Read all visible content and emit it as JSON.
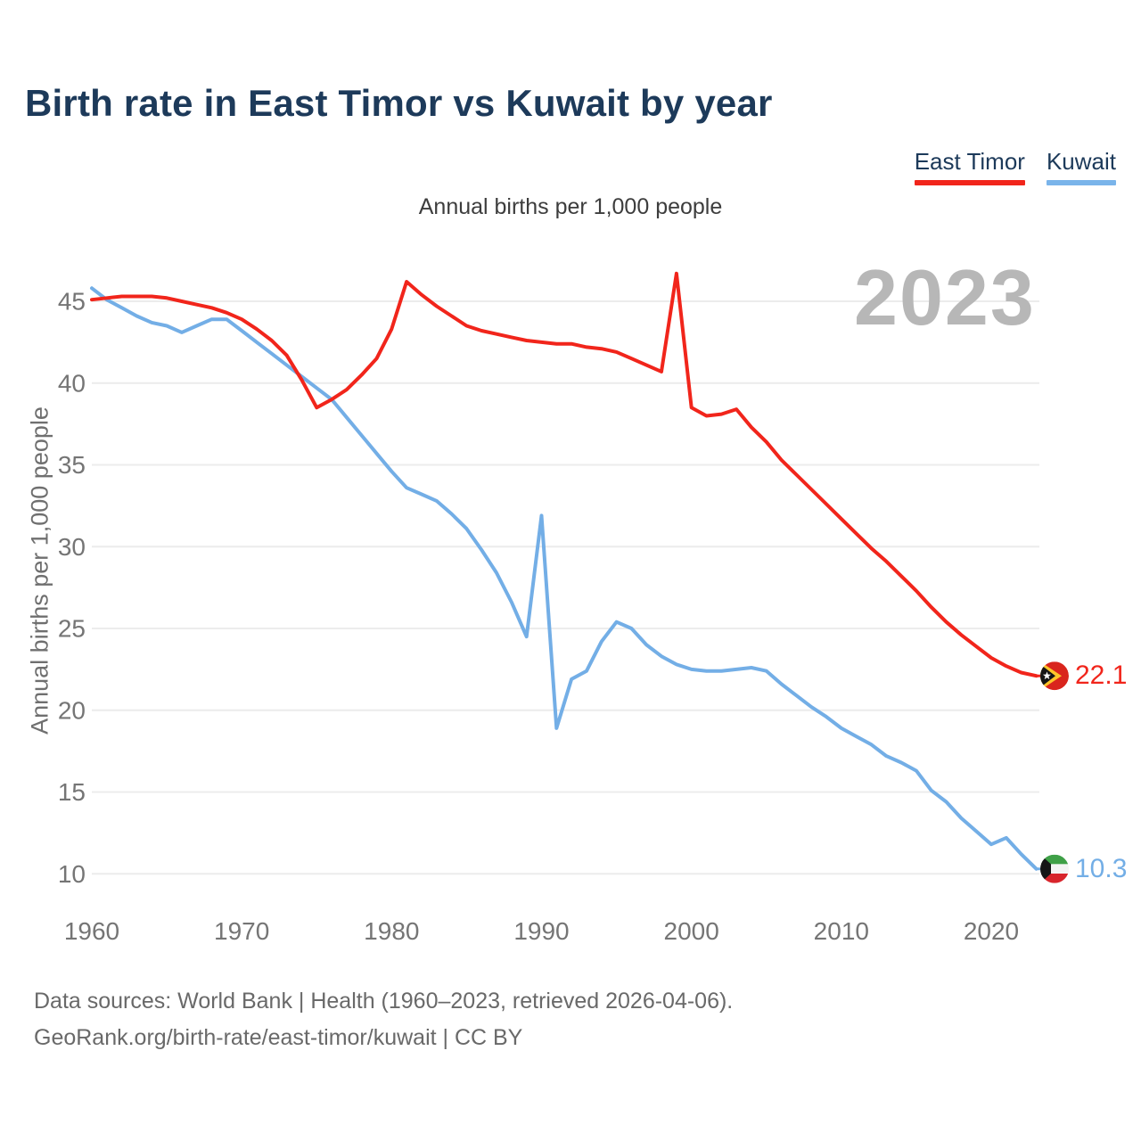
{
  "page": {
    "title": "Birth rate in East Timor vs Kuwait by year"
  },
  "legend": {
    "items": [
      {
        "label": "East Timor",
        "color": "#f1251b"
      },
      {
        "label": "Kuwait",
        "color": "#7ab4ea"
      }
    ]
  },
  "subtitle": "Annual births per 1,000 people",
  "watermark": "2023",
  "end_labels": {
    "east_timor": "22.1",
    "kuwait": "10.3"
  },
  "footer": {
    "line1": "Data sources: World Bank | Health (1960–2023, retrieved 2026-04-06).",
    "line2": "GeoRank.org/birth-rate/east-timor/kuwait | CC BY"
  },
  "chart_data": {
    "type": "line",
    "title": "Birth rate in East Timor vs Kuwait by year",
    "ylabel": "Annual births per 1,000 people",
    "grid": true,
    "legend_position": "top-right",
    "x_ticks": [
      1960,
      1970,
      1980,
      1990,
      2000,
      2010,
      2020
    ],
    "y_ticks": [
      45,
      40,
      35,
      30,
      25,
      20,
      15,
      10
    ],
    "xlim": [
      1960,
      2023
    ],
    "ylim": [
      8.8,
      47.5
    ],
    "x": [
      1960,
      1961,
      1962,
      1963,
      1964,
      1965,
      1966,
      1967,
      1968,
      1969,
      1970,
      1971,
      1972,
      1973,
      1974,
      1975,
      1976,
      1977,
      1978,
      1979,
      1980,
      1981,
      1982,
      1983,
      1984,
      1985,
      1986,
      1987,
      1988,
      1989,
      1990,
      1991,
      1992,
      1993,
      1994,
      1995,
      1996,
      1997,
      1998,
      1999,
      2000,
      2001,
      2002,
      2003,
      2004,
      2005,
      2006,
      2007,
      2008,
      2009,
      2010,
      2011,
      2012,
      2013,
      2014,
      2015,
      2016,
      2017,
      2018,
      2019,
      2020,
      2021,
      2022,
      2023
    ],
    "series": [
      {
        "name": "East Timor",
        "color": "#f1251b",
        "values": [
          45.1,
          45.2,
          45.3,
          45.3,
          45.3,
          45.2,
          45.0,
          44.8,
          44.6,
          44.3,
          43.9,
          43.3,
          42.6,
          41.7,
          40.2,
          38.5,
          39.0,
          39.6,
          40.5,
          41.5,
          43.3,
          46.2,
          45.4,
          44.7,
          44.1,
          43.5,
          43.2,
          43.0,
          42.8,
          42.6,
          42.5,
          42.4,
          42.4,
          42.2,
          42.1,
          41.9,
          41.5,
          41.1,
          40.7,
          46.7,
          38.5,
          38.0,
          38.1,
          38.4,
          37.3,
          36.4,
          35.3,
          34.4,
          33.5,
          32.6,
          31.7,
          30.8,
          29.9,
          29.1,
          28.2,
          27.3,
          26.3,
          25.4,
          24.6,
          23.9,
          23.2,
          22.7,
          22.3,
          22.1
        ]
      },
      {
        "name": "Kuwait",
        "color": "#73aee6",
        "values": [
          45.8,
          45.1,
          44.6,
          44.1,
          43.7,
          43.5,
          43.1,
          43.5,
          43.9,
          43.9,
          43.2,
          42.5,
          41.8,
          41.1,
          40.4,
          39.7,
          39.0,
          37.9,
          36.8,
          35.7,
          34.6,
          33.6,
          33.2,
          32.8,
          32.0,
          31.1,
          29.8,
          28.4,
          26.6,
          24.5,
          31.9,
          18.9,
          21.9,
          22.4,
          24.2,
          25.4,
          25.0,
          24.0,
          23.3,
          22.8,
          22.5,
          22.4,
          22.4,
          22.5,
          22.6,
          22.4,
          21.6,
          20.9,
          20.2,
          19.6,
          18.9,
          18.4,
          17.9,
          17.2,
          16.8,
          16.3,
          15.1,
          14.4,
          13.4,
          12.6,
          11.8,
          12.2,
          11.2,
          10.3
        ]
      }
    ]
  }
}
